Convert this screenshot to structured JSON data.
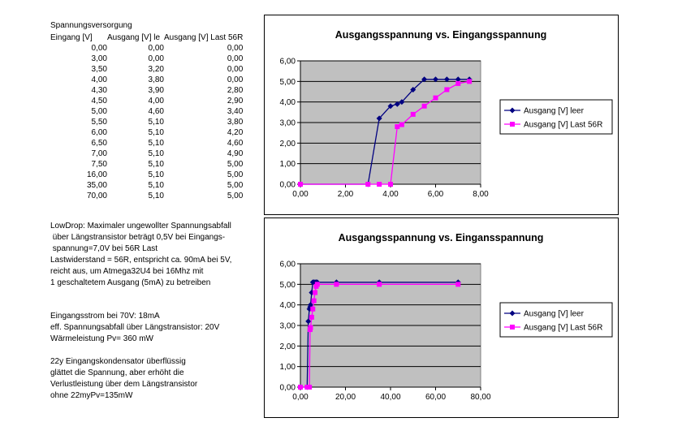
{
  "table": {
    "title": "Spannungsversorgung",
    "headers": [
      "Eingang [V]",
      "Ausgang [V] le",
      "Ausgang [V] Last 56R"
    ],
    "rows": [
      [
        "0,00",
        "0,00",
        "0,00"
      ],
      [
        "3,00",
        "0,00",
        "0,00"
      ],
      [
        "3,50",
        "3,20",
        "0,00"
      ],
      [
        "4,00",
        "3,80",
        "0,00"
      ],
      [
        "4,30",
        "3,90",
        "2,80"
      ],
      [
        "4,50",
        "4,00",
        "2,90"
      ],
      [
        "5,00",
        "4,60",
        "3,40"
      ],
      [
        "5,50",
        "5,10",
        "3,80"
      ],
      [
        "6,00",
        "5,10",
        "4,20"
      ],
      [
        "6,50",
        "5,10",
        "4,60"
      ],
      [
        "7,00",
        "5,10",
        "4,90"
      ],
      [
        "7,50",
        "5,10",
        "5,00"
      ],
      [
        "16,00",
        "5,10",
        "5,00"
      ],
      [
        "35,00",
        "5,10",
        "5,00"
      ],
      [
        "70,00",
        "5,10",
        "5,00"
      ]
    ]
  },
  "notes": {
    "lowdrop": "LowDrop: Maximaler ungewollter Spannungsabfall\n über Längstransistor beträgt 0,5V bei Eingangs-\n spannung=7,0V bei 56R Last\nLastwiderstand = 56R, entspricht ca. 90mA bei 5V,\nreicht aus, um Atmega32U4 bei 16Mhz mit\n1 geschaltetem Ausgang (5mA) zu betreiben",
    "current": "Eingangsstrom bei 70V: 18mA\neff. Spannungsabfall über Längstransistor: 20V\nWärmeleistung Pv= 360 mW",
    "capacitor": "22y Eingangskondensator überflüssig\nglättet die Spannung, aber erhöht die\nVerlustleistung über dem Längstransistor\nohne 22myPv=135mW"
  },
  "colors": {
    "plot_bg": "#c0c0c0",
    "series1": "#000080",
    "series2": "#ff00ff"
  },
  "chart_data": [
    {
      "type": "line",
      "title": "Ausgangsspannung vs. Eingangsspannung",
      "xlim": [
        0,
        8
      ],
      "ylim": [
        0,
        6
      ],
      "xticks": [
        "0,00",
        "2,00",
        "4,00",
        "6,00",
        "8,00"
      ],
      "yticks": [
        "0,00",
        "1,00",
        "2,00",
        "3,00",
        "4,00",
        "5,00",
        "6,00"
      ],
      "grid": true,
      "legend": "right",
      "series": [
        {
          "name": "Ausgang [V] leer",
          "marker": "diamond",
          "x": [
            0,
            3,
            3.5,
            4,
            4.3,
            4.5,
            5,
            5.5,
            6,
            6.5,
            7,
            7.5
          ],
          "y": [
            0,
            0,
            3.2,
            3.8,
            3.9,
            4.0,
            4.6,
            5.1,
            5.1,
            5.1,
            5.1,
            5.1
          ]
        },
        {
          "name": "Ausgang [V] Last 56R",
          "marker": "square",
          "x": [
            0,
            3,
            3.5,
            4,
            4.3,
            4.5,
            5,
            5.5,
            6,
            6.5,
            7,
            7.5
          ],
          "y": [
            0,
            0,
            0,
            0,
            2.8,
            2.9,
            3.4,
            3.8,
            4.2,
            4.6,
            4.9,
            5.0
          ]
        }
      ]
    },
    {
      "type": "line",
      "title": "Ausgangsspannung vs. Eingansspannung",
      "xlim": [
        0,
        80
      ],
      "ylim": [
        0,
        6
      ],
      "xticks": [
        "0,00",
        "20,00",
        "40,00",
        "60,00",
        "80,00"
      ],
      "yticks": [
        "0,00",
        "1,00",
        "2,00",
        "3,00",
        "4,00",
        "5,00",
        "6,00"
      ],
      "grid": true,
      "legend": "right",
      "series": [
        {
          "name": "Ausgang [V] leer",
          "marker": "diamond",
          "x": [
            0,
            3,
            3.5,
            4,
            4.3,
            4.5,
            5,
            5.5,
            6,
            6.5,
            7,
            7.5,
            16,
            35,
            70
          ],
          "y": [
            0,
            0,
            3.2,
            3.8,
            3.9,
            4.0,
            4.6,
            5.1,
            5.1,
            5.1,
            5.1,
            5.1,
            5.1,
            5.1,
            5.1
          ]
        },
        {
          "name": "Ausgang [V] Last 56R",
          "marker": "square",
          "x": [
            0,
            3,
            3.5,
            4,
            4.3,
            4.5,
            5,
            5.5,
            6,
            6.5,
            7,
            7.5,
            16,
            35,
            70
          ],
          "y": [
            0,
            0,
            0,
            0,
            2.8,
            2.9,
            3.4,
            3.8,
            4.2,
            4.6,
            4.9,
            5.0,
            5.0,
            5.0,
            5.0
          ]
        }
      ]
    }
  ]
}
